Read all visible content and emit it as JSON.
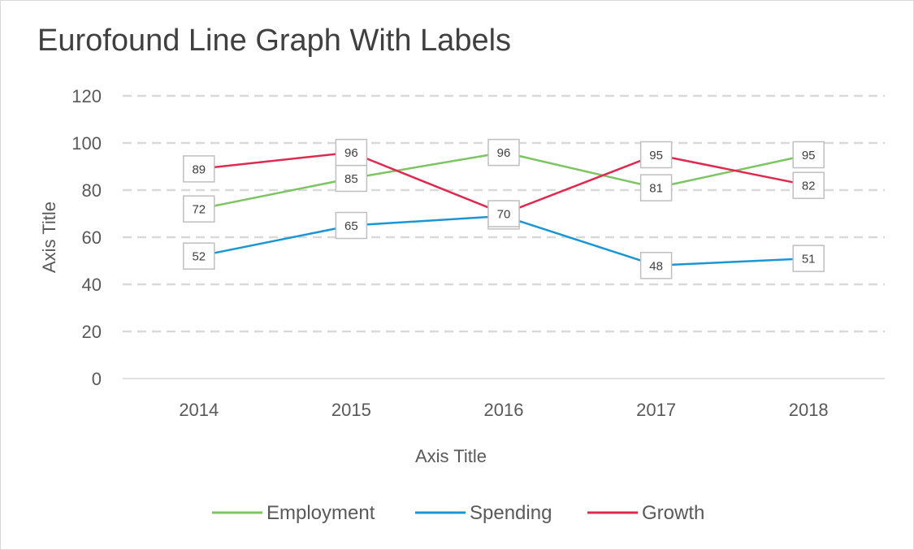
{
  "chart_data": {
    "type": "line",
    "title": "Eurofound Line Graph With Labels",
    "xlabel": "Axis Title",
    "ylabel": "Axis Title",
    "categories": [
      "2014",
      "2015",
      "2016",
      "2017",
      "2018"
    ],
    "ylim": [
      0,
      120
    ],
    "yticks": [
      0,
      20,
      40,
      60,
      80,
      100,
      120
    ],
    "grid": true,
    "legend_position": "bottom",
    "series": [
      {
        "name": "Employment",
        "color": "#7dc462",
        "values": [
          72,
          85,
          96,
          81,
          95
        ]
      },
      {
        "name": "Spending",
        "color": "#1a96d4",
        "values": [
          52,
          65,
          69,
          48,
          51
        ]
      },
      {
        "name": "Growth",
        "color": "#e0294e",
        "values": [
          89,
          96,
          70,
          95,
          82
        ]
      }
    ]
  }
}
